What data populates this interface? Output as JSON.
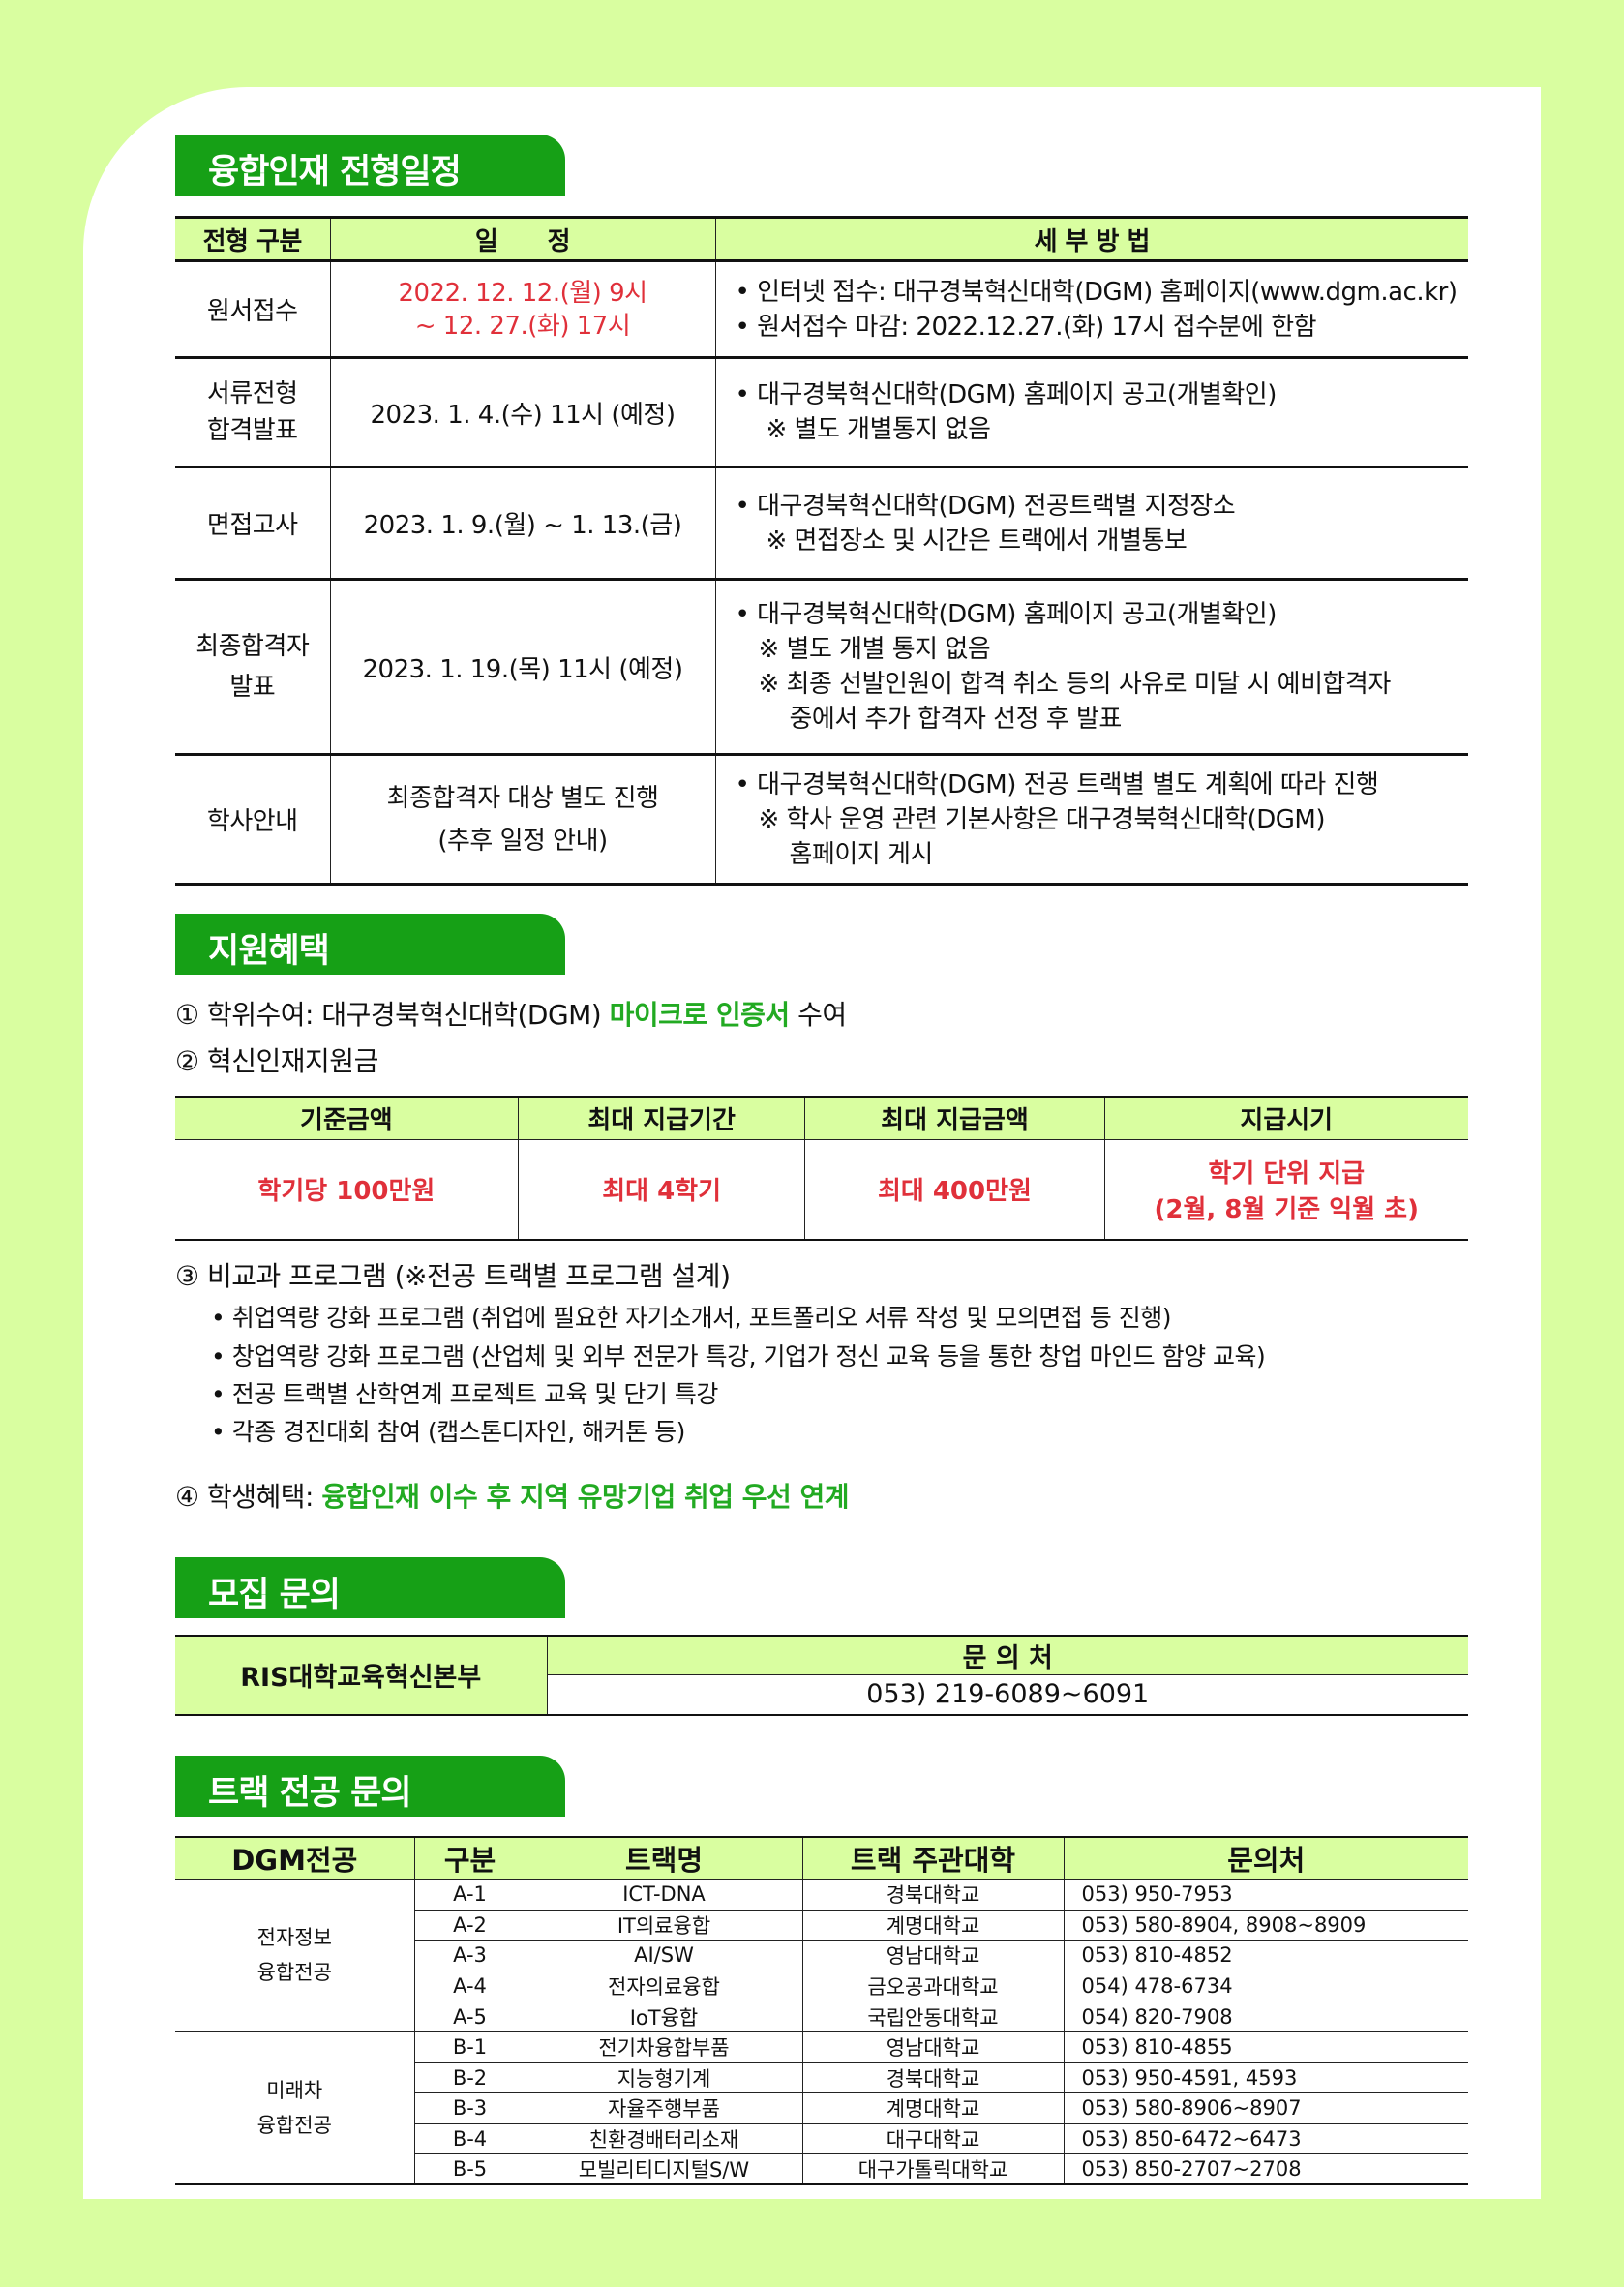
{
  "colors": {
    "background": "#d9fea0",
    "section_header": "#16a016",
    "table_header": "#d9fea0",
    "highlight_red": "#e0303a",
    "highlight_green": "#22aa22"
  },
  "schedule": {
    "title": "융합인재 전형일정",
    "headers": [
      "전형 구분",
      "일      정",
      "세 부 방 법"
    ],
    "rows": [
      {
        "type": "원서접수",
        "date": [
          "2022. 12. 12.(월) 9시",
          "~ 12. 27.(화) 17시"
        ],
        "details": [
          "• 인터넷 접수: 대구경북혁신대학(DGM) 홈페이지(www.dgm.ac.kr)",
          "• 원서접수 마감: 2022.12.27.(화) 17시 접수분에 한함"
        ]
      },
      {
        "type": [
          "서류전형",
          "합격발표"
        ],
        "date": [
          "2023. 1. 4.(수) 11시 (예정)"
        ],
        "details": [
          "• 대구경북혁신대학(DGM) 홈페이지 공고(개별확인)",
          "※ 별도 개별통지 없음"
        ]
      },
      {
        "type": "면접고사",
        "date": [
          "2023. 1. 9.(월) ~ 1. 13.(금)"
        ],
        "details": [
          "• 대구경북혁신대학(DGM) 전공트랙별 지정장소",
          "※ 면접장소 및 시간은 트랙에서 개별통보"
        ]
      },
      {
        "type": [
          "최종합격자",
          "발표"
        ],
        "date": [
          "2023. 1. 19.(목) 11시 (예정)"
        ],
        "details": [
          "• 대구경북혁신대학(DGM) 홈페이지 공고(개별확인)",
          "※ 별도 개별 통지 없음",
          "※ 최종 선발인원이 합격 취소 등의 사유로 미달 시 예비합격자",
          "중에서 추가 합격자 선정 후 발표"
        ]
      },
      {
        "type": "학사안내",
        "date": [
          "최종합격자 대상 별도 진행",
          "(추후 일정 안내)"
        ],
        "details": [
          "• 대구경북혁신대학(DGM) 전공 트랙별 별도 계획에 따라 진행",
          "※ 학사 운영 관련 기본사항은 대구경북혁신대학(DGM)",
          "홈페이지 게시"
        ]
      }
    ]
  },
  "benefits": {
    "title": "지원혜택",
    "item1": {
      "prefix": "① 학위수여: 대구경북혁신대학(DGM) ",
      "highlight": "마이크로 인증서",
      "suffix": " 수여"
    },
    "item2": "② 혁신인재지원금",
    "table": {
      "headers": [
        "기준금액",
        "최대 지급기간",
        "최대 지급금액",
        "지급시기"
      ],
      "values": [
        "학기당 100만원",
        "최대 4학기",
        "최대 400만원",
        [
          "학기 단위 지급",
          "(2월, 8월 기준 익월 초)"
        ]
      ]
    },
    "item3": "③ 비교과 프로그램 (※전공 트랙별 프로그램 설계)",
    "item3_bullets": [
      "• 취업역량 강화 프로그램 (취업에 필요한 자기소개서, 포트폴리오 서류 작성 및 모의면접 등 진행)",
      "• 창업역량 강화 프로그램 (산업체 및 외부 전문가 특강, 기업가 정신 교육 등을 통한 창업 마인드 함양 교육)",
      "• 전공 트랙별 산학연계 프로젝트 교육 및 단기 특강",
      "• 각종 경진대회 참여 (캡스톤디자인, 해커톤 등)"
    ],
    "item4": {
      "prefix": "④ 학생혜택: ",
      "highlight": "융합인재 이수 후 지역 유망기업 취업 우선 연계"
    }
  },
  "contact": {
    "title": "모집 문의",
    "org": "RIS대학교육혁신본부",
    "header": "문 의 처",
    "phone": "053) 219-6089~6091"
  },
  "tracks": {
    "title": "트랙 전공 문의",
    "headers": [
      "DGM전공",
      "구분",
      "트랙명",
      "트랙 주관대학",
      "문의처"
    ],
    "groups": [
      {
        "major": [
          "전자정보",
          "융합전공"
        ],
        "rows": [
          [
            "A-1",
            "ICT-DNA",
            "경북대학교",
            "053) 950-7953"
          ],
          [
            "A-2",
            "IT의료융합",
            "계명대학교",
            "053) 580-8904, 8908~8909"
          ],
          [
            "A-3",
            "AI/SW",
            "영남대학교",
            "053) 810-4852"
          ],
          [
            "A-4",
            "전자의료융합",
            "금오공과대학교",
            "054) 478-6734"
          ],
          [
            "A-5",
            "IoT융합",
            "국립안동대학교",
            "054) 820-7908"
          ]
        ]
      },
      {
        "major": [
          "미래차",
          "융합전공"
        ],
        "rows": [
          [
            "B-1",
            "전기차융합부품",
            "영남대학교",
            "053) 810-4855"
          ],
          [
            "B-2",
            "지능형기계",
            "경북대학교",
            "053) 950-4591, 4593"
          ],
          [
            "B-3",
            "자율주행부품",
            "계명대학교",
            "053) 580-8906~8907"
          ],
          [
            "B-4",
            "친환경배터리소재",
            "대구대학교",
            "053) 850-6472~6473"
          ],
          [
            "B-5",
            "모빌리티디지털S/W",
            "대구가톨릭대학교",
            "053) 850-2707~2708"
          ]
        ]
      }
    ]
  }
}
